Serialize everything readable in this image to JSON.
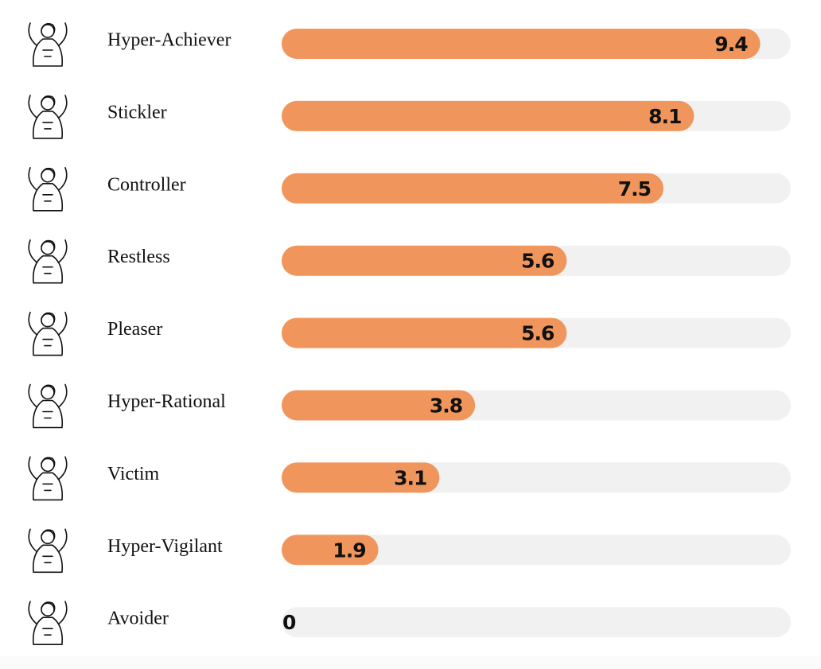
{
  "chart_data": {
    "type": "bar",
    "orientation": "horizontal",
    "categories": [
      "Hyper-Achiever",
      "Stickler",
      "Controller",
      "Restless",
      "Pleaser",
      "Hyper-Rational",
      "Victim",
      "Hyper-Vigilant",
      "Avoider"
    ],
    "values": [
      9.4,
      8.1,
      7.5,
      5.6,
      5.6,
      3.8,
      3.1,
      1.9,
      0
    ],
    "color": "#f0965c",
    "xlim": [
      0,
      10
    ]
  }
}
